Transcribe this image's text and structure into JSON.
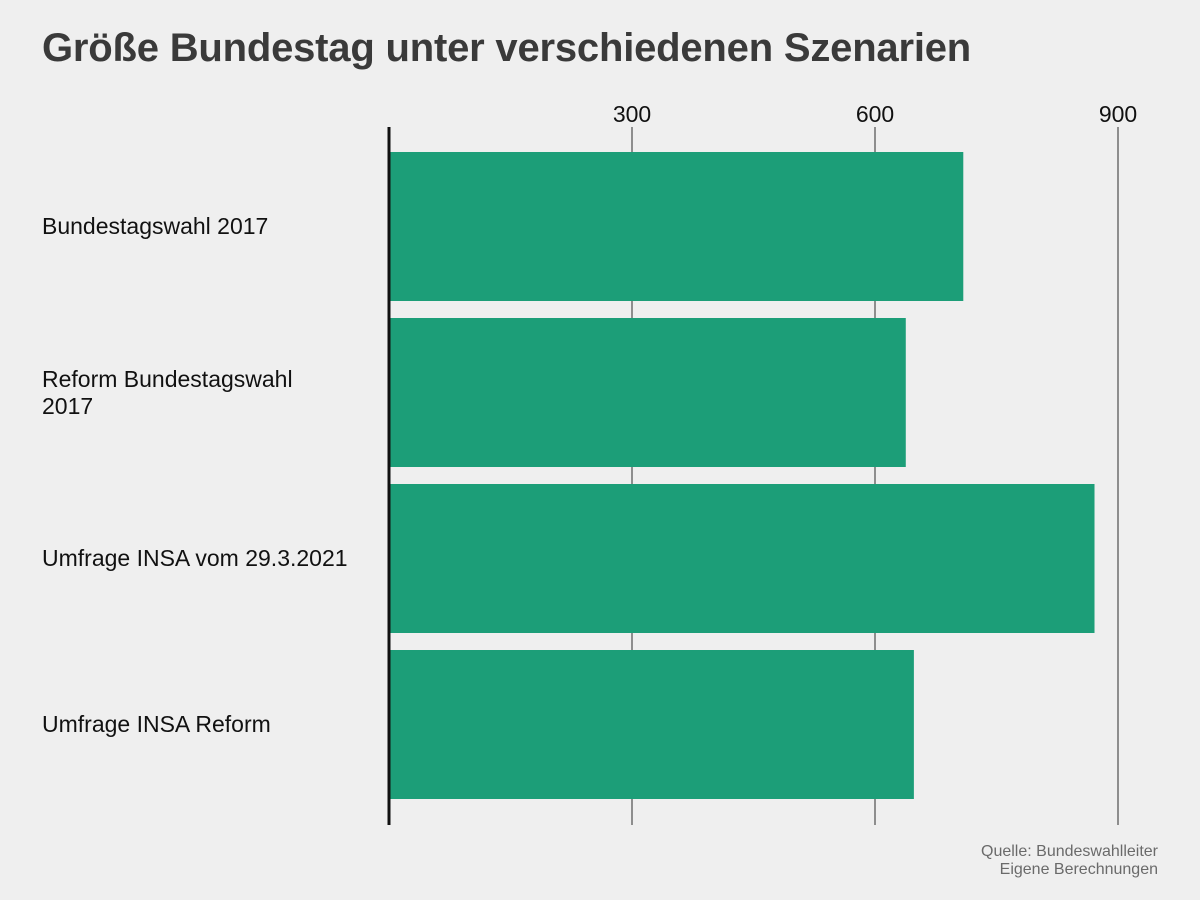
{
  "title": "Größe Bundestag unter verschiedenen Szenarien",
  "source": {
    "line1": "Quelle: Bundeswahlleiter",
    "line2": "Eigene Berechnungen"
  },
  "colors": {
    "bar": "#1c9e78",
    "axis": "#111111",
    "grid": "#6e6e6e"
  },
  "chart_data": {
    "type": "bar",
    "orientation": "horizontal",
    "title": "Größe Bundestag unter verschiedenen Szenarien",
    "categories": [
      "Bundestagswahl 2017",
      "Reform Bundestagswahl\n 2017",
      "Umfrage INSA vom 29.3.2021",
      "Umfrage INSA Reform"
    ],
    "values": [
      709,
      638,
      871,
      648
    ],
    "xlim": [
      0,
      900
    ],
    "xticks": [
      "300",
      "600",
      "900"
    ],
    "tick_values": [
      300,
      600,
      900
    ],
    "grid": true,
    "xaxis_position": "top"
  }
}
